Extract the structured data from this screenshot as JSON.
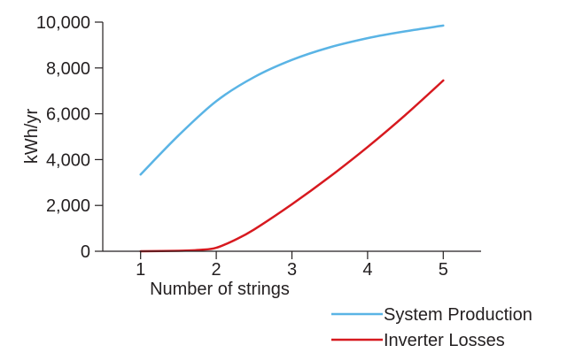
{
  "chart_data": {
    "type": "line",
    "title": "",
    "xlabel": "Number of strings",
    "ylabel": "kWh/yr",
    "xlim": [
      0.5,
      5.5
    ],
    "ylim": [
      0,
      10000
    ],
    "x_ticks": [
      1,
      2,
      3,
      4,
      5
    ],
    "x_tick_labels": [
      "1",
      "2",
      "3",
      "4",
      "5"
    ],
    "y_ticks": [
      0,
      2000,
      4000,
      6000,
      8000,
      10000
    ],
    "y_tick_labels": [
      "0",
      "2,000",
      "4,000",
      "6,000",
      "8,000",
      "10,000"
    ],
    "grid": false,
    "legend_position": "bottom-right",
    "series": [
      {
        "name": "System Production",
        "color": "#5ab4e5",
        "x": [
          1,
          1.5,
          2,
          2.5,
          3,
          3.5,
          4,
          4.5,
          5
        ],
        "y": [
          3350,
          5050,
          6550,
          7600,
          8350,
          8900,
          9300,
          9600,
          9850
        ]
      },
      {
        "name": "Inverter Losses",
        "color": "#d7191f",
        "x": [
          1,
          1.5,
          1.8,
          2,
          2.25,
          2.5,
          3,
          3.5,
          4,
          4.5,
          5
        ],
        "y": [
          0,
          20,
          60,
          150,
          500,
          950,
          2050,
          3250,
          4550,
          5950,
          7450
        ]
      }
    ]
  }
}
